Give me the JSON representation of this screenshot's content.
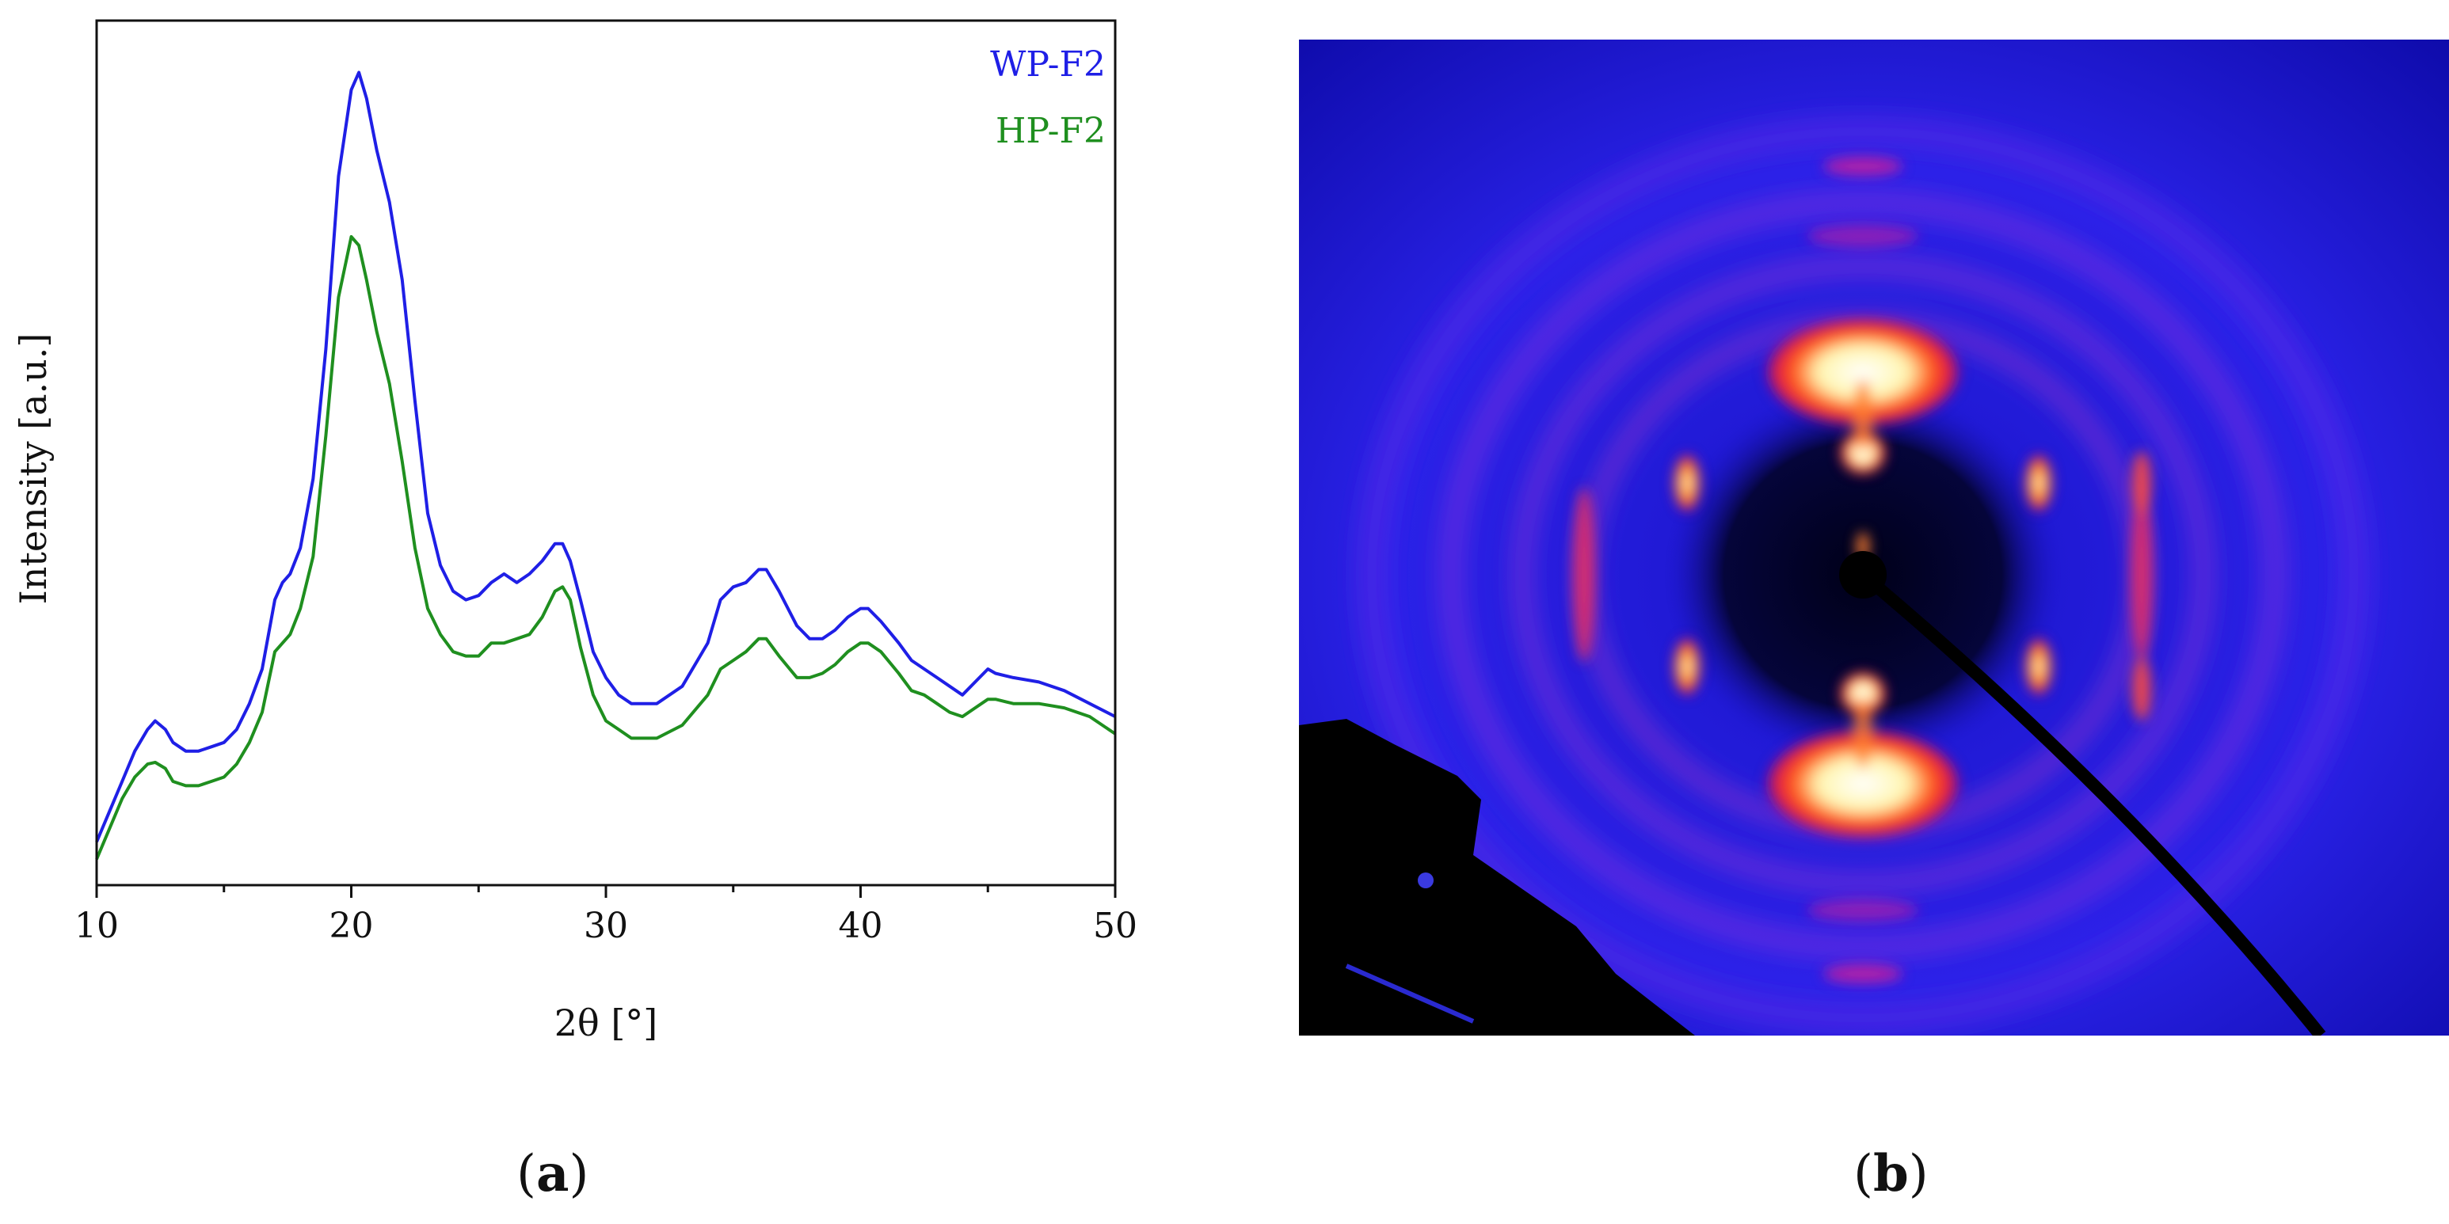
{
  "panel_a": {
    "label": "a"
  },
  "panel_b": {
    "label": "b",
    "image_description_icon": "xrd-diffraction-pattern-icon"
  },
  "chart_data": {
    "type": "line",
    "title": "",
    "xlabel": "2θ [°]",
    "ylabel": "Intensity [a.u.]",
    "xlim": [
      10,
      50
    ],
    "ylim": [
      0,
      100
    ],
    "xticks": [
      10,
      20,
      30,
      40,
      50
    ],
    "yticks_visible": false,
    "grid": false,
    "legend_placement": "top-right",
    "series": [
      {
        "name": "WP-F2",
        "color": "#1f1fe6",
        "x": [
          10,
          10.5,
          11,
          11.5,
          12,
          12.3,
          12.7,
          13,
          13.5,
          14,
          14.5,
          15,
          15.5,
          16,
          16.5,
          17,
          17.3,
          17.6,
          18,
          18.5,
          19,
          19.5,
          20,
          20.3,
          20.6,
          21,
          21.5,
          22,
          22.5,
          23,
          23.5,
          24,
          24.5,
          25,
          25.5,
          26,
          26.5,
          27,
          27.5,
          28,
          28.3,
          28.6,
          29,
          29.5,
          30,
          30.5,
          31,
          32,
          33,
          34,
          34.5,
          35,
          35.5,
          36,
          36.3,
          36.8,
          37.5,
          38,
          38.5,
          39,
          39.5,
          40,
          40.3,
          40.8,
          41.5,
          42,
          42.5,
          43,
          43.5,
          44,
          44.5,
          45,
          45.3,
          46,
          47,
          48,
          49,
          50
        ],
        "values": [
          5,
          8.5,
          12,
          15.5,
          18,
          19,
          18,
          16.5,
          15.5,
          15.5,
          16,
          16.5,
          18,
          21,
          25,
          33,
          35,
          36,
          39,
          47,
          62,
          82,
          92,
          94,
          91,
          85,
          79,
          70,
          56,
          43,
          37,
          34,
          33,
          33.5,
          35,
          36,
          35,
          36,
          37.5,
          39.5,
          39.5,
          37.5,
          33,
          27,
          24,
          22,
          21,
          21,
          23,
          28,
          33,
          34.5,
          35,
          36.5,
          36.5,
          34,
          30,
          28.5,
          28.5,
          29.5,
          31,
          32,
          32,
          30.5,
          28,
          26,
          25,
          24,
          23,
          22,
          23.5,
          25,
          24.5,
          24,
          23.5,
          22.5,
          21,
          19.5
        ]
      },
      {
        "name": "HP-F2",
        "color": "#1f8f1f",
        "x": [
          10,
          10.5,
          11,
          11.5,
          12,
          12.3,
          12.7,
          13,
          13.5,
          14,
          14.5,
          15,
          15.5,
          16,
          16.5,
          17,
          17.3,
          17.6,
          18,
          18.5,
          19,
          19.5,
          20,
          20.3,
          20.6,
          21,
          21.5,
          22,
          22.5,
          23,
          23.5,
          24,
          24.5,
          25,
          25.5,
          26,
          26.5,
          27,
          27.5,
          28,
          28.3,
          28.6,
          29,
          29.5,
          30,
          30.5,
          31,
          32,
          33,
          34,
          34.5,
          35,
          35.5,
          36,
          36.3,
          36.8,
          37.5,
          38,
          38.5,
          39,
          39.5,
          40,
          40.3,
          40.8,
          41.5,
          42,
          42.5,
          43,
          43.5,
          44,
          44.5,
          45,
          45.3,
          46,
          47,
          48,
          49,
          50
        ],
        "values": [
          3,
          6.5,
          10,
          12.5,
          14,
          14.2,
          13.5,
          12,
          11.5,
          11.5,
          12,
          12.5,
          14,
          16.5,
          20,
          27,
          28,
          29,
          32,
          38,
          52,
          68,
          75,
          74,
          70,
          64,
          58,
          49,
          39,
          32,
          29,
          27,
          26.5,
          26.5,
          28,
          28,
          28.5,
          29,
          31,
          34,
          34.5,
          33,
          27.5,
          22,
          19,
          18,
          17,
          17,
          18.5,
          22,
          25,
          26,
          27,
          28.5,
          28.5,
          26.5,
          24,
          24,
          24.5,
          25.5,
          27,
          28,
          28,
          27,
          24.5,
          22.5,
          22,
          21,
          20,
          19.5,
          20.5,
          21.5,
          21.5,
          21,
          21,
          20.5,
          19.5,
          17.5
        ]
      }
    ]
  }
}
